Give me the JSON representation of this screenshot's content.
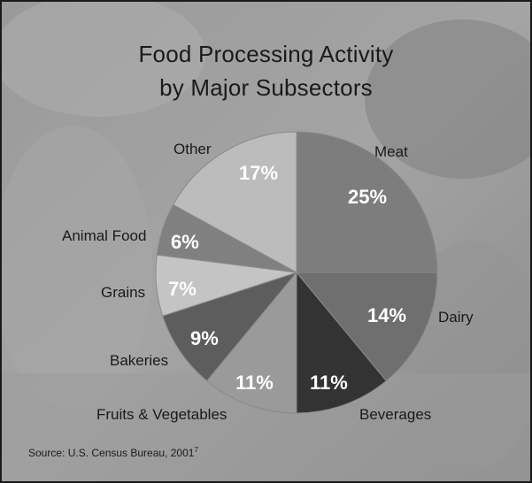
{
  "chart_data": {
    "type": "pie",
    "title_lines": [
      "Food Processing Activity",
      "by Major Subsectors"
    ],
    "slices": [
      {
        "label": "Meat",
        "value": 25,
        "pct_label": "25%",
        "color": "#7d7d7d"
      },
      {
        "label": "Dairy",
        "value": 14,
        "pct_label": "14%",
        "color": "#6f6f6f"
      },
      {
        "label": "Beverages",
        "value": 11,
        "pct_label": "11%",
        "color": "#333333"
      },
      {
        "label": "Fruits & Vegetables",
        "value": 11,
        "pct_label": "11%",
        "color": "#9a9a9a"
      },
      {
        "label": "Bakeries",
        "value": 9,
        "pct_label": "9%",
        "color": "#5d5d5d"
      },
      {
        "label": "Grains",
        "value": 7,
        "pct_label": "7%",
        "color": "#c4c4c4"
      },
      {
        "label": "Animal  Food",
        "value": 6,
        "pct_label": "6%",
        "color": "#808080"
      },
      {
        "label": "Other",
        "value": 17,
        "pct_label": "17%",
        "color": "#bcbcbc"
      }
    ]
  },
  "source": {
    "text": "Source: U.S. Census Bureau, 2001",
    "note": "7"
  }
}
